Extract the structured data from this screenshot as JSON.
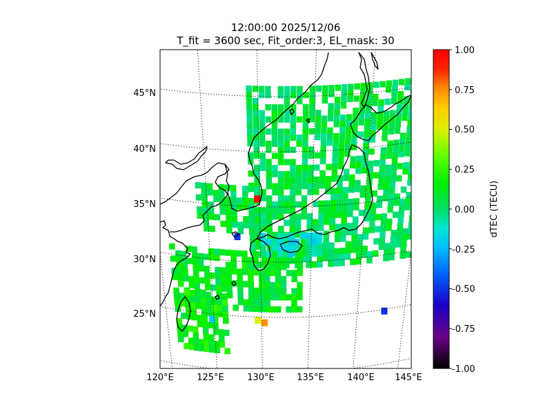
{
  "title": {
    "line1": "12:00:00 2025/12/06",
    "line2": "T_fit = 3600 sec, Fit_order:3, EL_mask: 30"
  },
  "map": {
    "lon_range": [
      120,
      145
    ],
    "lat_range": [
      20,
      49
    ],
    "lat_ticks": [
      {
        "value": 25,
        "label": "25°N"
      },
      {
        "value": 30,
        "label": "30°N"
      },
      {
        "value": 35,
        "label": "35°N"
      },
      {
        "value": 40,
        "label": "40°N"
      },
      {
        "value": 45,
        "label": "45°N"
      }
    ],
    "lon_ticks": [
      {
        "value": 120,
        "label": "120°E"
      },
      {
        "value": 125,
        "label": "125°E"
      },
      {
        "value": 130,
        "label": "130°E"
      },
      {
        "value": 135,
        "label": "135°E"
      },
      {
        "value": 140,
        "label": "140°E"
      },
      {
        "value": 145,
        "label": "145°E"
      }
    ],
    "gridline_style": "dotted",
    "coastline_color": "#000000"
  },
  "colorbar": {
    "label": "dTEC (TECU)",
    "range": [
      -1.0,
      1.0
    ],
    "ticks": [
      "1.00",
      "0.75",
      "0.50",
      "0.25",
      "0.00",
      "-0.25",
      "-0.50",
      "-0.75",
      "-1.00"
    ],
    "colormap": "nipy_spectral-like (black, purple, blue, cyan, green, yellow, orange, red)"
  },
  "chart_data": {
    "type": "heatmap",
    "title": "12:00:00 2025/12/06\nT_fit = 3600 sec, Fit_order:3, EL_mask: 30",
    "xlabel": "",
    "ylabel": "",
    "colorbar_label": "dTEC (TECU)",
    "value_range": [
      -1.0,
      1.0
    ],
    "dominant_value": 0.05,
    "regions": [
      {
        "lon": [
          129,
          146
        ],
        "lat": [
          30,
          46
        ],
        "value": 0.05
      },
      {
        "lon": [
          124,
          130
        ],
        "lat": [
          33,
          37
        ],
        "value": 0.07
      },
      {
        "lon": [
          121,
          134
        ],
        "lat": [
          26,
          31
        ],
        "value": 0.1
      },
      {
        "lon": [
          121,
          126
        ],
        "lat": [
          22,
          27
        ],
        "value": 0.15
      },
      {
        "lon": [
          130,
          136
        ],
        "lat": [
          31,
          33
        ],
        "value": -0.12
      }
    ],
    "notable_cells": [
      {
        "lon": 129.5,
        "lat": 36.0,
        "value": 1.0
      },
      {
        "lon": 130.0,
        "lat": 24.8,
        "value": 0.75
      },
      {
        "lon": 129.3,
        "lat": 25.0,
        "value": 0.5
      },
      {
        "lon": 127.5,
        "lat": 32.5,
        "value": -0.5
      },
      {
        "lon": 142.5,
        "lat": 25.2,
        "value": -0.5
      },
      {
        "lon": 124.5,
        "lat": 24.8,
        "value": -0.2
      }
    ]
  }
}
